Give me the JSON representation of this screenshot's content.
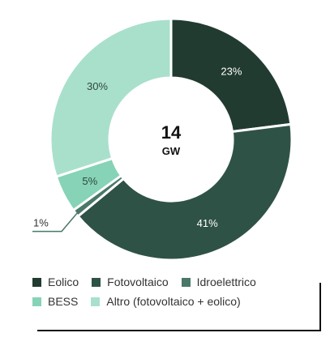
{
  "chart_data": {
    "type": "pie",
    "donut": true,
    "center_value": "14",
    "center_unit": "GW",
    "slices": [
      {
        "label": "Eolico",
        "value": 23,
        "label_text": "23%",
        "color": "#223b31"
      },
      {
        "label": "Fotovoltaico",
        "value": 41,
        "label_text": "41%",
        "color": "#2f5246"
      },
      {
        "label": "Idroelettrico",
        "value": 1,
        "label_text": "1%",
        "color": "#4a7868"
      },
      {
        "label": "BESS",
        "value": 5,
        "label_text": "5%",
        "color": "#86d3b7"
      },
      {
        "label": "Altro (fotovoltaico + eolico)",
        "value": 30,
        "label_text": "30%",
        "color": "#a9e0cb"
      }
    ],
    "legend": [
      [
        "Eolico",
        "Fotovoltaico",
        "Idroelettrico"
      ],
      [
        "BESS",
        "Altro (fotovoltaico + eolico)"
      ]
    ],
    "legend_position": "bottom"
  }
}
